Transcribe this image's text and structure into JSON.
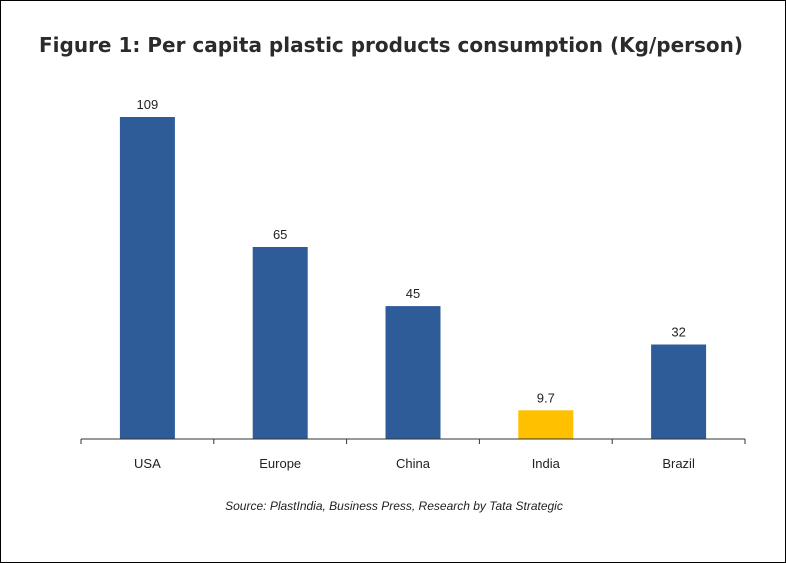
{
  "chart_data": {
    "type": "bar",
    "title": "Figure 1: Per capita plastic products consumption (Kg/person)",
    "categories": [
      "USA",
      "Europe",
      "China",
      "India",
      "Brazil"
    ],
    "values": [
      109,
      65,
      45,
      9.7,
      32
    ],
    "value_labels": [
      "109",
      "65",
      "45",
      "9.7",
      "32"
    ],
    "bar_colors": [
      "#2E5C99",
      "#2E5C99",
      "#2E5C99",
      "#FFC000",
      "#2E5C99"
    ],
    "ylim": [
      0,
      109
    ],
    "xlabel": "",
    "ylabel": "",
    "grid": false,
    "legend": "none",
    "source": "Source: PlastIndia, Business Press, Research by Tata Strategic"
  },
  "colors": {
    "primary_bar": "#2E5C99",
    "highlight_bar": "#FFC000",
    "axis": "#333333",
    "text": "#222222"
  }
}
